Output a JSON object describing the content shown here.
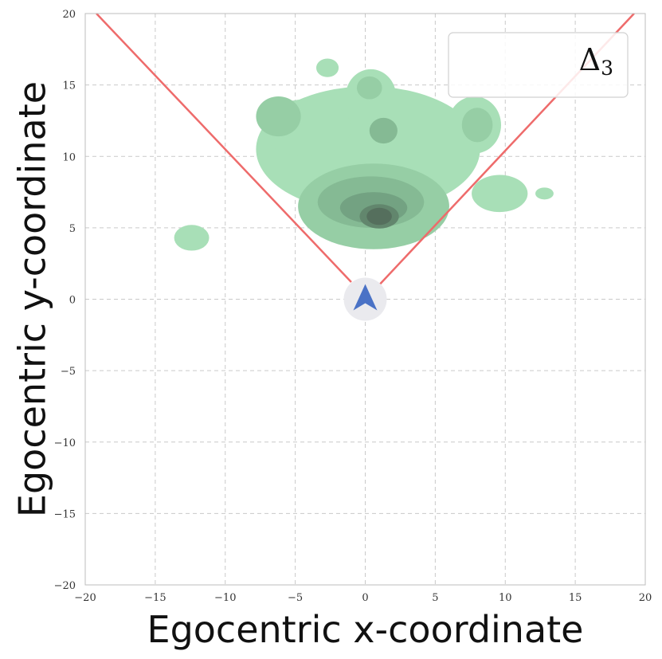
{
  "chart_data": {
    "type": "kde-density",
    "xlabel": "Egocentric x-coordinate",
    "ylabel": "Egocentric y-coordinate",
    "xlim": [
      -20,
      20
    ],
    "ylim": [
      -20,
      20
    ],
    "xticks": [
      -20,
      -15,
      -10,
      -5,
      0,
      5,
      10,
      15,
      20
    ],
    "yticks": [
      -20,
      -15,
      -10,
      -5,
      0,
      5,
      10,
      15,
      20
    ],
    "grid": true,
    "legend": {
      "placement": "top-right",
      "symbol": "Δ",
      "subscript": "3"
    },
    "cone_lines": [
      {
        "from": [
          0.9,
          0.9
        ],
        "to": [
          19.2,
          20
        ]
      },
      {
        "from": [
          -1.0,
          1.2
        ],
        "to": [
          -19.2,
          20
        ]
      }
    ],
    "agent": {
      "x": 0,
      "y": 0,
      "marker": "arrow-up"
    },
    "density_blobs": [
      {
        "x": 0.2,
        "y": 10.5,
        "sx": 8.0,
        "sy": 4.4,
        "level": 1
      },
      {
        "x": -4.2,
        "y": 12.0,
        "sx": 3.2,
        "sy": 2.0,
        "level": 1
      },
      {
        "x": 0.4,
        "y": 14.2,
        "sx": 1.8,
        "sy": 1.9,
        "level": 1
      },
      {
        "x": 7.8,
        "y": 12.2,
        "sx": 1.9,
        "sy": 2.0,
        "level": 1
      },
      {
        "x": 9.6,
        "y": 7.4,
        "sx": 2.0,
        "sy": 1.3,
        "level": 1
      },
      {
        "x": 0.6,
        "y": 6.5,
        "sx": 5.4,
        "sy": 3.0,
        "level": 2
      },
      {
        "x": -6.2,
        "y": 12.8,
        "sx": 1.6,
        "sy": 1.4,
        "level": 2
      },
      {
        "x": 8.0,
        "y": 12.2,
        "sx": 1.1,
        "sy": 1.2,
        "level": 2
      },
      {
        "x": 0.3,
        "y": 14.8,
        "sx": 0.9,
        "sy": 0.8,
        "level": 2
      },
      {
        "x": 0.4,
        "y": 6.8,
        "sx": 3.8,
        "sy": 1.8,
        "level": 3
      },
      {
        "x": 1.3,
        "y": 11.8,
        "sx": 1.0,
        "sy": 0.9,
        "level": 3
      },
      {
        "x": 0.6,
        "y": 6.4,
        "sx": 2.4,
        "sy": 1.1,
        "level": 4
      },
      {
        "x": 1.0,
        "y": 5.8,
        "sx": 1.4,
        "sy": 0.85,
        "level": 5
      },
      {
        "x": 1.0,
        "y": 5.8,
        "sx": 0.9,
        "sy": 0.6,
        "level": 6
      },
      {
        "x": -2.7,
        "y": 16.2,
        "sx": 0.8,
        "sy": 0.65,
        "level": 1
      },
      {
        "x": -12.4,
        "y": 4.3,
        "sx": 1.25,
        "sy": 0.9,
        "level": 1
      },
      {
        "x": 12.8,
        "y": 7.4,
        "sx": 0.65,
        "sy": 0.42,
        "level": 1
      }
    ],
    "colors": {
      "level1": "#a8dfb7",
      "level2": "#96cea5",
      "level3": "#85ba94",
      "level4": "#73a282",
      "level5": "#62866d",
      "level6": "#556f5d",
      "line": "#ee6b6b",
      "agent_bg": "#eaeaee",
      "agent_arrow": "#4a72c6",
      "grid": "#c9c9c9"
    }
  }
}
